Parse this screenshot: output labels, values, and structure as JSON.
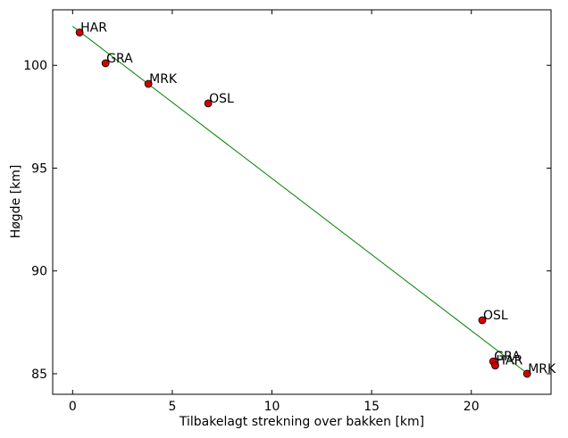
{
  "chart_data": {
    "type": "scatter",
    "title": "",
    "xlabel": "Tilbakelagt strekning over bakken [km]",
    "ylabel": "Høgde [km]",
    "xlim": [
      -1,
      24
    ],
    "ylim": [
      84,
      102.7
    ],
    "xticks": [
      0,
      5,
      10,
      15,
      20
    ],
    "yticks": [
      85,
      90,
      95,
      100
    ],
    "grid": false,
    "points": [
      {
        "label": "HAR",
        "x": 0.35,
        "y": 101.6
      },
      {
        "label": "GRA",
        "x": 1.65,
        "y": 100.1
      },
      {
        "label": "MRK",
        "x": 3.8,
        "y": 99.1
      },
      {
        "label": "OSL",
        "x": 6.8,
        "y": 98.15
      },
      {
        "label": "OSL",
        "x": 20.55,
        "y": 87.6
      },
      {
        "label": "GRA",
        "x": 21.1,
        "y": 85.6
      },
      {
        "label": "HAR",
        "x": 21.2,
        "y": 85.4
      },
      {
        "label": "MRK",
        "x": 22.8,
        "y": 85.0
      }
    ],
    "fit_line": {
      "x": [
        0,
        22.9
      ],
      "y": [
        101.9,
        84.95
      ]
    },
    "colors": {
      "points": "#d40000",
      "line": "#008000"
    }
  }
}
